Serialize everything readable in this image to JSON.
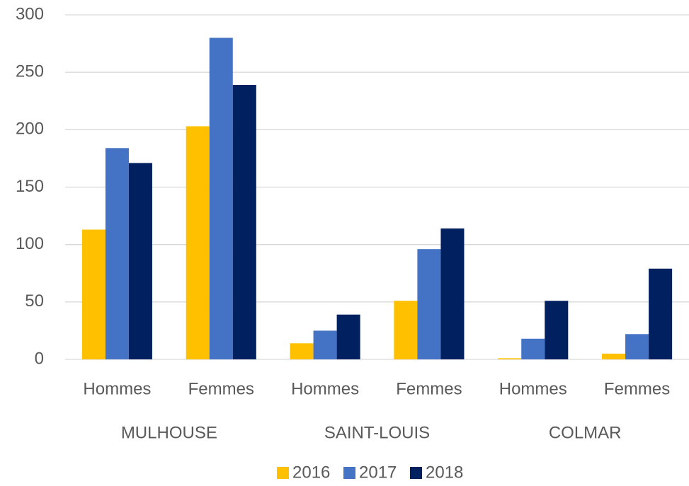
{
  "chart_data": {
    "type": "bar",
    "categories": [
      "Hommes",
      "Femmes",
      "Hommes",
      "Femmes",
      "Hommes",
      "Femmes"
    ],
    "groups": [
      "MULHOUSE",
      "SAINT-LOUIS",
      "COLMAR"
    ],
    "series": [
      {
        "name": "2016",
        "color": "#ffc000",
        "values": [
          113,
          203,
          14,
          51,
          1,
          5
        ]
      },
      {
        "name": "2017",
        "color": "#4472c4",
        "values": [
          184,
          280,
          25,
          96,
          18,
          22
        ]
      },
      {
        "name": "2018",
        "color": "#002060",
        "values": [
          171,
          239,
          39,
          114,
          51,
          79
        ]
      }
    ],
    "ylim": [
      0,
      300
    ],
    "yticks": [
      0,
      50,
      100,
      150,
      200,
      250,
      300
    ],
    "grid": true,
    "legend": "bottom"
  }
}
